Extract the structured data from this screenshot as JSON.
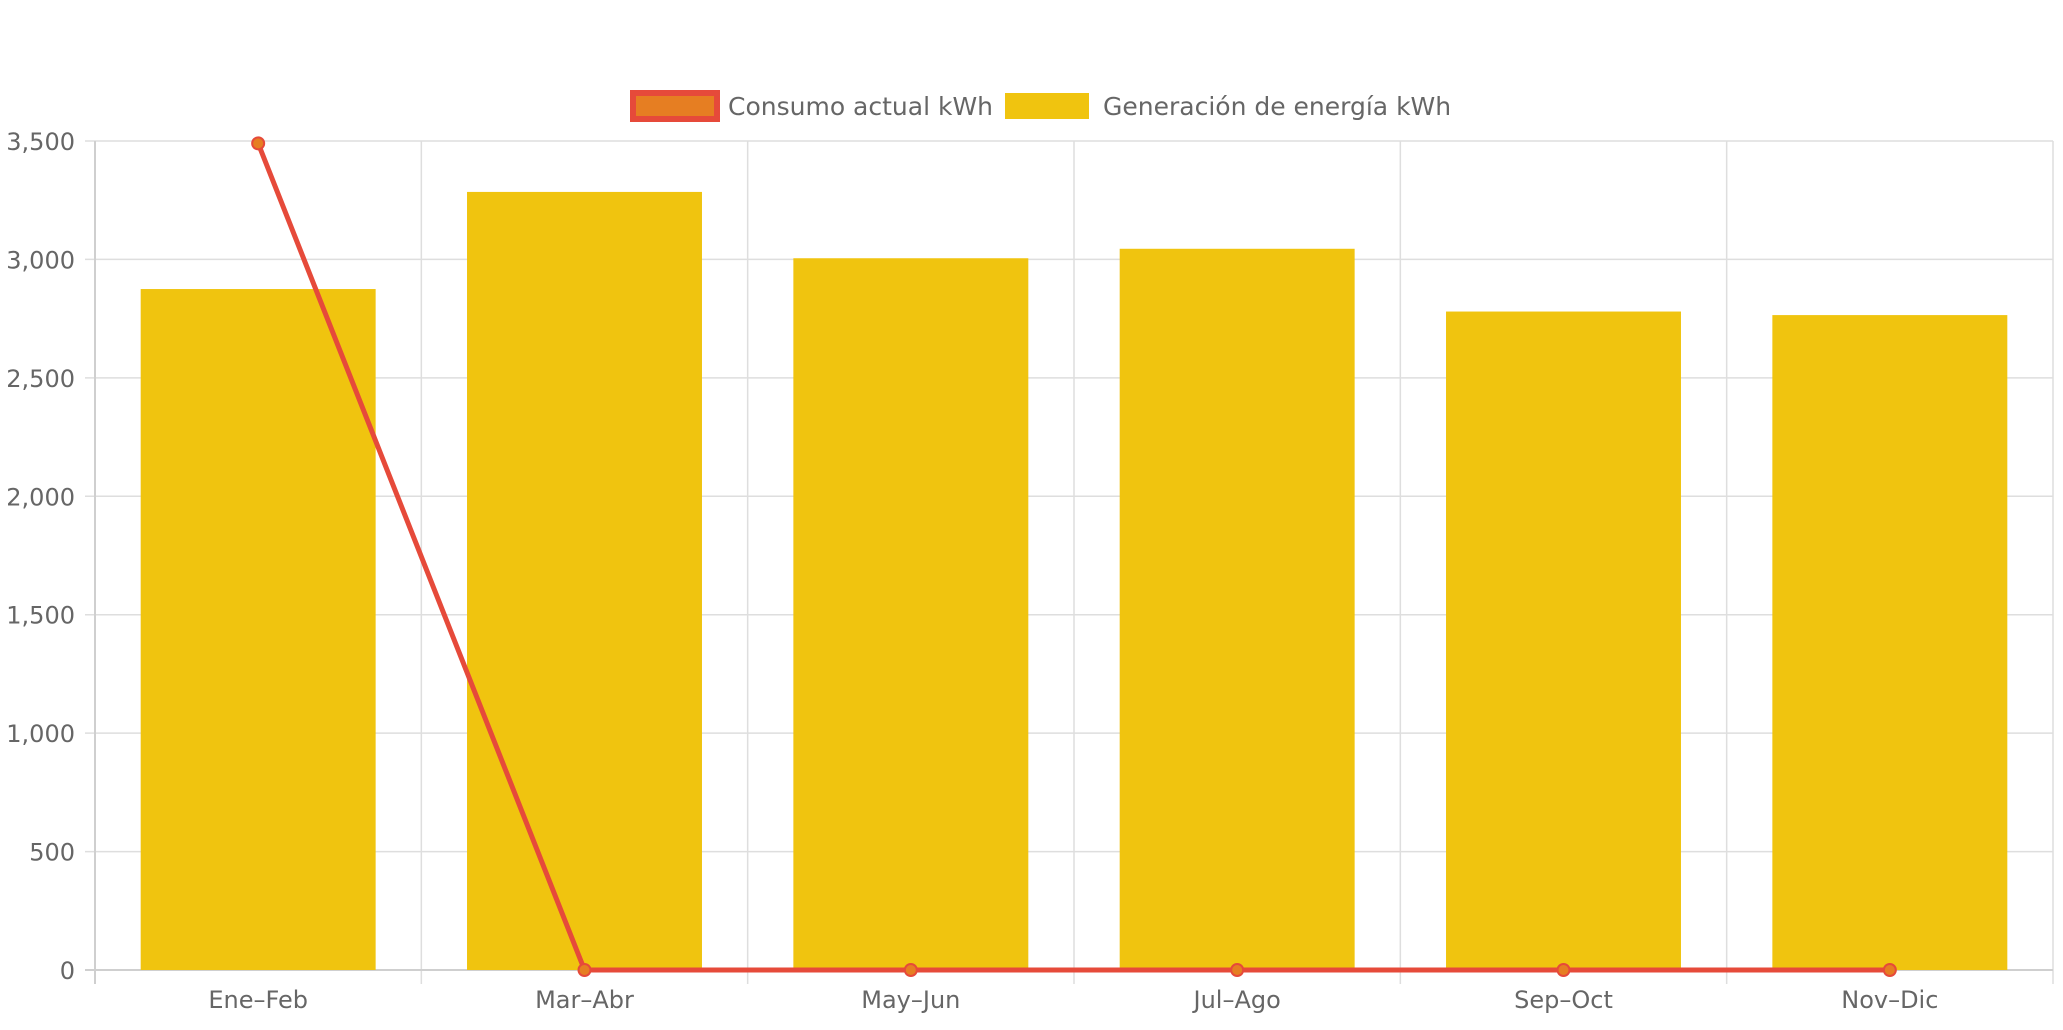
{
  "chart_data": {
    "type": "bar",
    "title": "",
    "xlabel": "",
    "ylabel": "",
    "categories": [
      "Ene–Feb",
      "Mar–Abr",
      "May–Jun",
      "Jul–Ago",
      "Sep–Oct",
      "Nov–Dic"
    ],
    "ylim": [
      0,
      3500
    ],
    "yticks": [
      0,
      500,
      1000,
      1500,
      2000,
      2500,
      3000,
      3500
    ],
    "ytick_labels": [
      "0",
      "500",
      "1,000",
      "1,500",
      "2,000",
      "2,500",
      "3,000",
      "3,500"
    ],
    "grid": true,
    "legend_position": "top-center",
    "series": [
      {
        "name": "Consumo actual kWh",
        "type": "line",
        "color": "#e64a3a",
        "point_fill": "#e67e22",
        "values": [
          3490,
          0,
          0,
          0,
          0,
          0
        ]
      },
      {
        "name": "Generación de energía kWh",
        "type": "bar",
        "color": "#f0c40f",
        "values": [
          2875,
          3285,
          3005,
          3045,
          2780,
          2765
        ]
      }
    ]
  }
}
